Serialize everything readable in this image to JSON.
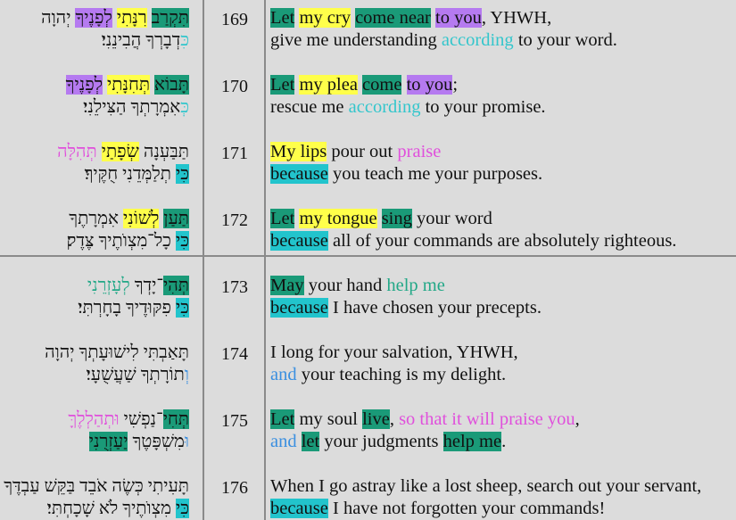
{
  "colors": {
    "teal": "#1a9a78",
    "yellow": "#ffff4a",
    "purple": "#b57af0",
    "cyan": "#22c4cc",
    "cyanText": "#33c6cc",
    "pinkText": "#e050dc",
    "greenText": "#22a887",
    "blueText": "#3a8fe0"
  },
  "verses": [
    {
      "number": "169",
      "hebrew": [
        [
          [
            "תִּקְרַב",
            "bg:teal"
          ],
          [
            " ",
            ""
          ],
          [
            "רִנָּתִי",
            "bg:yellow"
          ],
          [
            " ",
            ""
          ],
          [
            "לְפָנֶיךָ",
            "bg:purple"
          ],
          [
            " יְהוָה",
            ""
          ]
        ],
        [
          [
            "כִּ",
            "fg:cyanText"
          ],
          [
            "דְבָרְךָ הֲבִינֵנִי׃",
            ""
          ]
        ]
      ],
      "english": [
        [
          [
            "Let",
            "bg:teal"
          ],
          [
            " ",
            ""
          ],
          [
            "my cry",
            "bg:yellow"
          ],
          [
            " ",
            ""
          ],
          [
            "come near",
            "bg:teal"
          ],
          [
            " ",
            ""
          ],
          [
            "to you",
            "bg:purple"
          ],
          [
            ", YHWH,",
            ""
          ]
        ],
        [
          [
            "give me understanding ",
            ""
          ],
          [
            "according",
            "fg:cyanText"
          ],
          [
            " to your word.",
            ""
          ]
        ]
      ]
    },
    {
      "number": "170",
      "hebrew": [
        [
          [
            "תָּבוֹא",
            "bg:teal"
          ],
          [
            " ",
            ""
          ],
          [
            "תְּחִנָּתִי",
            "bg:yellow"
          ],
          [
            " ",
            ""
          ],
          [
            "לְפָנֶיךָ",
            "bg:purple"
          ]
        ],
        [
          [
            "כְּ",
            "fg:cyanText"
          ],
          [
            "אִמְרָתְךָ הַצִּילֵנִי׃",
            ""
          ]
        ]
      ],
      "english": [
        [
          [
            "Let",
            "bg:teal"
          ],
          [
            " ",
            ""
          ],
          [
            "my plea",
            "bg:yellow"
          ],
          [
            " ",
            ""
          ],
          [
            "come",
            "bg:teal"
          ],
          [
            " ",
            ""
          ],
          [
            "to you",
            "bg:purple"
          ],
          [
            ";",
            ""
          ]
        ],
        [
          [
            "rescue me ",
            ""
          ],
          [
            "according",
            "fg:cyanText"
          ],
          [
            " to your promise.",
            ""
          ]
        ]
      ]
    },
    {
      "number": "171",
      "hebrew": [
        [
          [
            "תַּבַּעְנָה ",
            ""
          ],
          [
            "שְׂפָתַי",
            "bg:yellow"
          ],
          [
            " ",
            ""
          ],
          [
            "תְּהִלָּה",
            "fg:pinkText"
          ]
        ],
        [
          [
            "כִּי",
            "bg:cyan"
          ],
          [
            " תְלַמְּדֵנִי חֻקֶּיךָ׃",
            ""
          ]
        ]
      ],
      "english": [
        [
          [
            "My lips",
            "bg:yellow"
          ],
          [
            " pour out ",
            ""
          ],
          [
            "praise",
            "fg:pinkText"
          ]
        ],
        [
          [
            "because",
            "bg:cyan"
          ],
          [
            " you teach me your purposes.",
            ""
          ]
        ]
      ]
    },
    {
      "number": "172",
      "hebrew": [
        [
          [
            "תַּעַן",
            "bg:teal"
          ],
          [
            " ",
            ""
          ],
          [
            "לְשׁוֹנִי",
            "bg:yellow"
          ],
          [
            " אִמְרָתֶךָ",
            ""
          ]
        ],
        [
          [
            "כִּי",
            "bg:cyan"
          ],
          [
            " כָל־מִצְוֺתֶיךָ צֶּדֶק׃",
            ""
          ]
        ]
      ],
      "english": [
        [
          [
            "Let",
            "bg:teal"
          ],
          [
            " ",
            ""
          ],
          [
            "my tongue",
            "bg:yellow"
          ],
          [
            " ",
            ""
          ],
          [
            "sing",
            "bg:teal"
          ],
          [
            " your word",
            ""
          ]
        ],
        [
          [
            "because",
            "bg:cyan"
          ],
          [
            " all of your commands are absolutely righteous.",
            ""
          ]
        ]
      ]
    },
    {
      "number": "173",
      "hebrew": [
        [
          [
            "תְּהִי",
            "bg:teal"
          ],
          [
            "־יָדְךָ ",
            ""
          ],
          [
            "לְעָזְרֵנִי",
            "fg:greenText"
          ]
        ],
        [
          [
            "כִּי",
            "bg:cyan"
          ],
          [
            " פִקּוּדֶיךָ בָחָרְתִּי׃",
            ""
          ]
        ]
      ],
      "english": [
        [
          [
            "May",
            "bg:teal"
          ],
          [
            " your hand ",
            ""
          ],
          [
            "help me",
            "fg:greenText"
          ]
        ],
        [
          [
            "because",
            "bg:cyan"
          ],
          [
            " I have chosen your precepts.",
            ""
          ]
        ]
      ]
    },
    {
      "number": "174",
      "hebrew": [
        [
          [
            "תָּאַבְתִּי לִישׁוּעָתְךָ יְהוָה",
            ""
          ]
        ],
        [
          [
            "וְ",
            "fg:blueText"
          ],
          [
            "תוֹרָתְךָ שַׁעֲשֻׁעָי׃",
            ""
          ]
        ]
      ],
      "english": [
        [
          [
            "I long for your salvation, YHWH,",
            ""
          ]
        ],
        [
          [
            "and",
            "fg:blueText"
          ],
          [
            " your teaching is my delight.",
            ""
          ]
        ]
      ]
    },
    {
      "number": "175",
      "hebrew": [
        [
          [
            "תְּחִי",
            "bg:teal"
          ],
          [
            "־נַפְשִׁי ",
            ""
          ],
          [
            "וּתְהַלְלֶךָּ",
            "fg:pinkText"
          ]
        ],
        [
          [
            "וּ",
            "fg:blueText"
          ],
          [
            "מִשְׁפָּטֶךָ ",
            ""
          ],
          [
            "יַעַזְרֻנִי",
            "bg:teal"
          ],
          [
            "׃",
            ""
          ]
        ]
      ],
      "english": [
        [
          [
            "Let",
            "bg:teal"
          ],
          [
            " my soul ",
            ""
          ],
          [
            "live",
            "bg:teal"
          ],
          [
            ", ",
            ""
          ],
          [
            "so that it will praise you",
            "fg:pinkText"
          ],
          [
            ",",
            ""
          ]
        ],
        [
          [
            "and",
            "fg:blueText"
          ],
          [
            " ",
            ""
          ],
          [
            "let",
            "bg:teal"
          ],
          [
            " your judgments ",
            ""
          ],
          [
            "help me",
            "bg:teal"
          ],
          [
            ".",
            ""
          ]
        ]
      ]
    },
    {
      "number": "176",
      "hebrew": [
        [
          [
            "תָּעִיתִי כְּשֶׂה אֹבֵד בַּקֵּשׁ עַבְדֶּךָ",
            ""
          ]
        ],
        [
          [
            "כִּי",
            "bg:cyan"
          ],
          [
            " מִצְוֺתֶיךָ לֹא שָׁכָחְתִּי׃",
            ""
          ]
        ]
      ],
      "english": [
        [
          [
            "When I go astray like a lost sheep, search out your servant,",
            ""
          ]
        ],
        [
          [
            "because",
            "bg:cyan"
          ],
          [
            " I have not forgotten your commands!",
            ""
          ]
        ]
      ]
    }
  ]
}
